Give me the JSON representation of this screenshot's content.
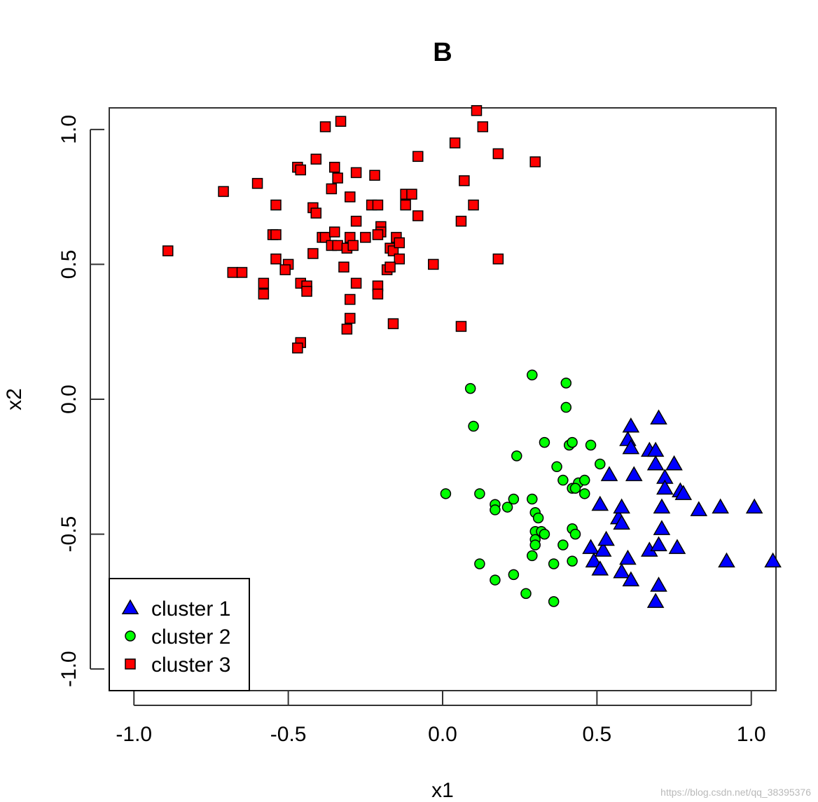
{
  "chart_data": {
    "type": "scatter",
    "title": "B",
    "xlabel": "x1",
    "ylabel": "x2",
    "xlim": [
      -1.08,
      1.08
    ],
    "ylim": [
      -1.08,
      1.08
    ],
    "x_ticks": [
      -1.0,
      -0.5,
      0.0,
      0.5,
      1.0
    ],
    "y_ticks": [
      -1.0,
      -0.5,
      0.0,
      0.5,
      1.0
    ],
    "x_tick_labels": [
      "-1.0",
      "-0.5",
      "0.0",
      "0.5",
      "1.0"
    ],
    "y_tick_labels": [
      "-1.0",
      "-0.5",
      "0.0",
      "0.5",
      "1.0"
    ],
    "legend": {
      "position": "bottom-left"
    },
    "series": [
      {
        "name": "cluster 1",
        "marker": "triangle",
        "color": "#0000ff",
        "points": [
          [
            0.61,
            -0.1
          ],
          [
            0.7,
            -0.07
          ],
          [
            0.6,
            -0.15
          ],
          [
            0.61,
            -0.18
          ],
          [
            0.67,
            -0.19
          ],
          [
            0.69,
            -0.19
          ],
          [
            0.69,
            -0.24
          ],
          [
            0.75,
            -0.24
          ],
          [
            0.54,
            -0.28
          ],
          [
            0.62,
            -0.28
          ],
          [
            0.72,
            -0.29
          ],
          [
            0.72,
            -0.33
          ],
          [
            0.77,
            -0.34
          ],
          [
            0.78,
            -0.35
          ],
          [
            0.51,
            -0.39
          ],
          [
            0.57,
            -0.44
          ],
          [
            0.58,
            -0.46
          ],
          [
            0.71,
            -0.4
          ],
          [
            0.83,
            -0.41
          ],
          [
            0.9,
            -0.4
          ],
          [
            1.01,
            -0.4
          ],
          [
            0.58,
            -0.4
          ],
          [
            0.71,
            -0.48
          ],
          [
            0.48,
            -0.55
          ],
          [
            0.52,
            -0.56
          ],
          [
            0.53,
            -0.52
          ],
          [
            0.49,
            -0.6
          ],
          [
            0.51,
            -0.63
          ],
          [
            0.6,
            -0.59
          ],
          [
            0.67,
            -0.56
          ],
          [
            0.7,
            -0.54
          ],
          [
            0.76,
            -0.55
          ],
          [
            0.58,
            -0.64
          ],
          [
            0.61,
            -0.67
          ],
          [
            0.7,
            -0.69
          ],
          [
            0.69,
            -0.75
          ],
          [
            0.92,
            -0.6
          ],
          [
            1.07,
            -0.6
          ]
        ]
      },
      {
        "name": "cluster 2",
        "marker": "circle",
        "color": "#00ff00",
        "points": [
          [
            0.29,
            0.09
          ],
          [
            0.4,
            0.06
          ],
          [
            0.09,
            0.04
          ],
          [
            0.4,
            -0.03
          ],
          [
            0.1,
            -0.1
          ],
          [
            0.33,
            -0.16
          ],
          [
            0.41,
            -0.17
          ],
          [
            0.42,
            -0.16
          ],
          [
            0.48,
            -0.17
          ],
          [
            0.24,
            -0.21
          ],
          [
            0.37,
            -0.25
          ],
          [
            0.51,
            -0.24
          ],
          [
            0.39,
            -0.3
          ],
          [
            0.42,
            -0.33
          ],
          [
            0.44,
            -0.31
          ],
          [
            0.46,
            -0.3
          ],
          [
            0.43,
            -0.33
          ],
          [
            0.46,
            -0.35
          ],
          [
            0.01,
            -0.35
          ],
          [
            0.12,
            -0.35
          ],
          [
            0.17,
            -0.39
          ],
          [
            0.17,
            -0.41
          ],
          [
            0.21,
            -0.4
          ],
          [
            0.23,
            -0.37
          ],
          [
            0.29,
            -0.37
          ],
          [
            0.3,
            -0.42
          ],
          [
            0.31,
            -0.44
          ],
          [
            0.3,
            -0.49
          ],
          [
            0.32,
            -0.49
          ],
          [
            0.33,
            -0.5
          ],
          [
            0.3,
            -0.52
          ],
          [
            0.3,
            -0.54
          ],
          [
            0.42,
            -0.48
          ],
          [
            0.43,
            -0.5
          ],
          [
            0.39,
            -0.54
          ],
          [
            0.29,
            -0.58
          ],
          [
            0.36,
            -0.61
          ],
          [
            0.42,
            -0.6
          ],
          [
            0.12,
            -0.61
          ],
          [
            0.17,
            -0.67
          ],
          [
            0.23,
            -0.65
          ],
          [
            0.27,
            -0.72
          ],
          [
            0.36,
            -0.75
          ]
        ]
      },
      {
        "name": "cluster 3",
        "marker": "square",
        "color": "#ff0000",
        "points": [
          [
            0.11,
            1.07
          ],
          [
            0.13,
            1.01
          ],
          [
            -0.33,
            1.03
          ],
          [
            -0.38,
            1.01
          ],
          [
            0.04,
            0.95
          ],
          [
            0.18,
            0.91
          ],
          [
            -0.08,
            0.9
          ],
          [
            0.3,
            0.88
          ],
          [
            -0.41,
            0.89
          ],
          [
            -0.47,
            0.86
          ],
          [
            -0.46,
            0.85
          ],
          [
            -0.35,
            0.86
          ],
          [
            -0.34,
            0.82
          ],
          [
            -0.28,
            0.84
          ],
          [
            -0.22,
            0.83
          ],
          [
            0.07,
            0.81
          ],
          [
            -0.6,
            0.8
          ],
          [
            -0.71,
            0.77
          ],
          [
            -0.36,
            0.78
          ],
          [
            -0.12,
            0.76
          ],
          [
            -0.1,
            0.76
          ],
          [
            -0.3,
            0.75
          ],
          [
            -0.54,
            0.72
          ],
          [
            -0.42,
            0.71
          ],
          [
            -0.41,
            0.69
          ],
          [
            -0.23,
            0.72
          ],
          [
            -0.21,
            0.72
          ],
          [
            -0.12,
            0.72
          ],
          [
            -0.08,
            0.68
          ],
          [
            0.1,
            0.72
          ],
          [
            0.06,
            0.66
          ],
          [
            -0.28,
            0.66
          ],
          [
            -0.2,
            0.64
          ],
          [
            -0.2,
            0.62
          ],
          [
            -0.21,
            0.61
          ],
          [
            -0.55,
            0.61
          ],
          [
            -0.54,
            0.61
          ],
          [
            -0.39,
            0.6
          ],
          [
            -0.38,
            0.6
          ],
          [
            -0.35,
            0.62
          ],
          [
            -0.3,
            0.6
          ],
          [
            -0.25,
            0.6
          ],
          [
            -0.15,
            0.6
          ],
          [
            -0.17,
            0.56
          ],
          [
            -0.16,
            0.55
          ],
          [
            -0.14,
            0.58
          ],
          [
            -0.36,
            0.57
          ],
          [
            -0.34,
            0.57
          ],
          [
            -0.31,
            0.56
          ],
          [
            -0.29,
            0.57
          ],
          [
            -0.89,
            0.55
          ],
          [
            -0.42,
            0.54
          ],
          [
            -0.54,
            0.52
          ],
          [
            -0.14,
            0.52
          ],
          [
            0.18,
            0.52
          ],
          [
            -0.5,
            0.5
          ],
          [
            -0.51,
            0.48
          ],
          [
            -0.03,
            0.5
          ],
          [
            -0.32,
            0.49
          ],
          [
            -0.18,
            0.48
          ],
          [
            -0.17,
            0.49
          ],
          [
            -0.68,
            0.47
          ],
          [
            -0.65,
            0.47
          ],
          [
            -0.58,
            0.43
          ],
          [
            -0.58,
            0.39
          ],
          [
            -0.46,
            0.43
          ],
          [
            -0.44,
            0.42
          ],
          [
            -0.44,
            0.4
          ],
          [
            -0.28,
            0.43
          ],
          [
            -0.21,
            0.42
          ],
          [
            -0.21,
            0.39
          ],
          [
            -0.3,
            0.37
          ],
          [
            -0.3,
            0.3
          ],
          [
            -0.31,
            0.26
          ],
          [
            -0.16,
            0.28
          ],
          [
            0.06,
            0.27
          ],
          [
            -0.46,
            0.21
          ],
          [
            -0.47,
            0.19
          ]
        ]
      }
    ]
  },
  "watermark": "https://blog.csdn.net/qq_38395376"
}
